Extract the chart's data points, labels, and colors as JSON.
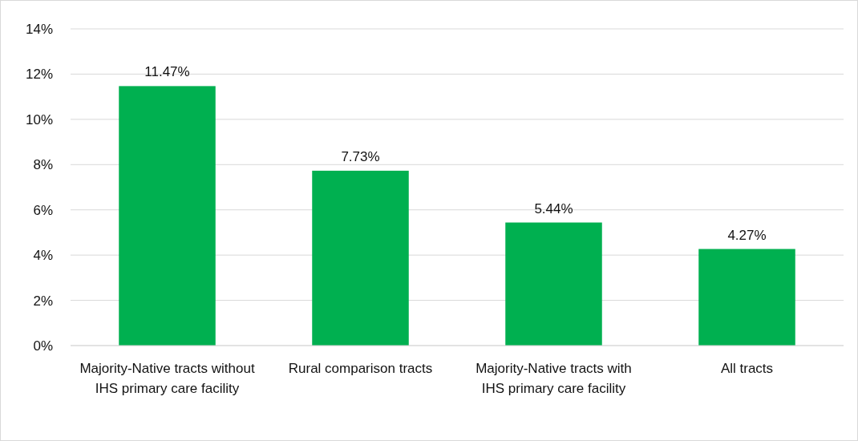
{
  "chart_data": {
    "type": "bar",
    "categories": [
      "Majority-Native tracts without IHS primary care facility",
      "Rural comparison tracts",
      "Majority-Native tracts with IHS primary care facility",
      "All tracts"
    ],
    "values": [
      11.47,
      7.73,
      5.44,
      4.27
    ],
    "color": "#00b050",
    "value_labels": [
      "11.47%",
      "7.73%",
      "5.44%",
      "4.27%"
    ],
    "ylim": [
      0,
      14
    ],
    "yticks": [
      {
        "value": 0,
        "label": "0%"
      },
      {
        "value": 2,
        "label": "2%"
      },
      {
        "value": 4,
        "label": "4%"
      },
      {
        "value": 6,
        "label": "6%"
      },
      {
        "value": 8,
        "label": "8%"
      },
      {
        "value": 10,
        "label": "10%"
      },
      {
        "value": 12,
        "label": "12%"
      },
      {
        "value": 14,
        "label": "14%"
      }
    ],
    "grid": "y"
  }
}
